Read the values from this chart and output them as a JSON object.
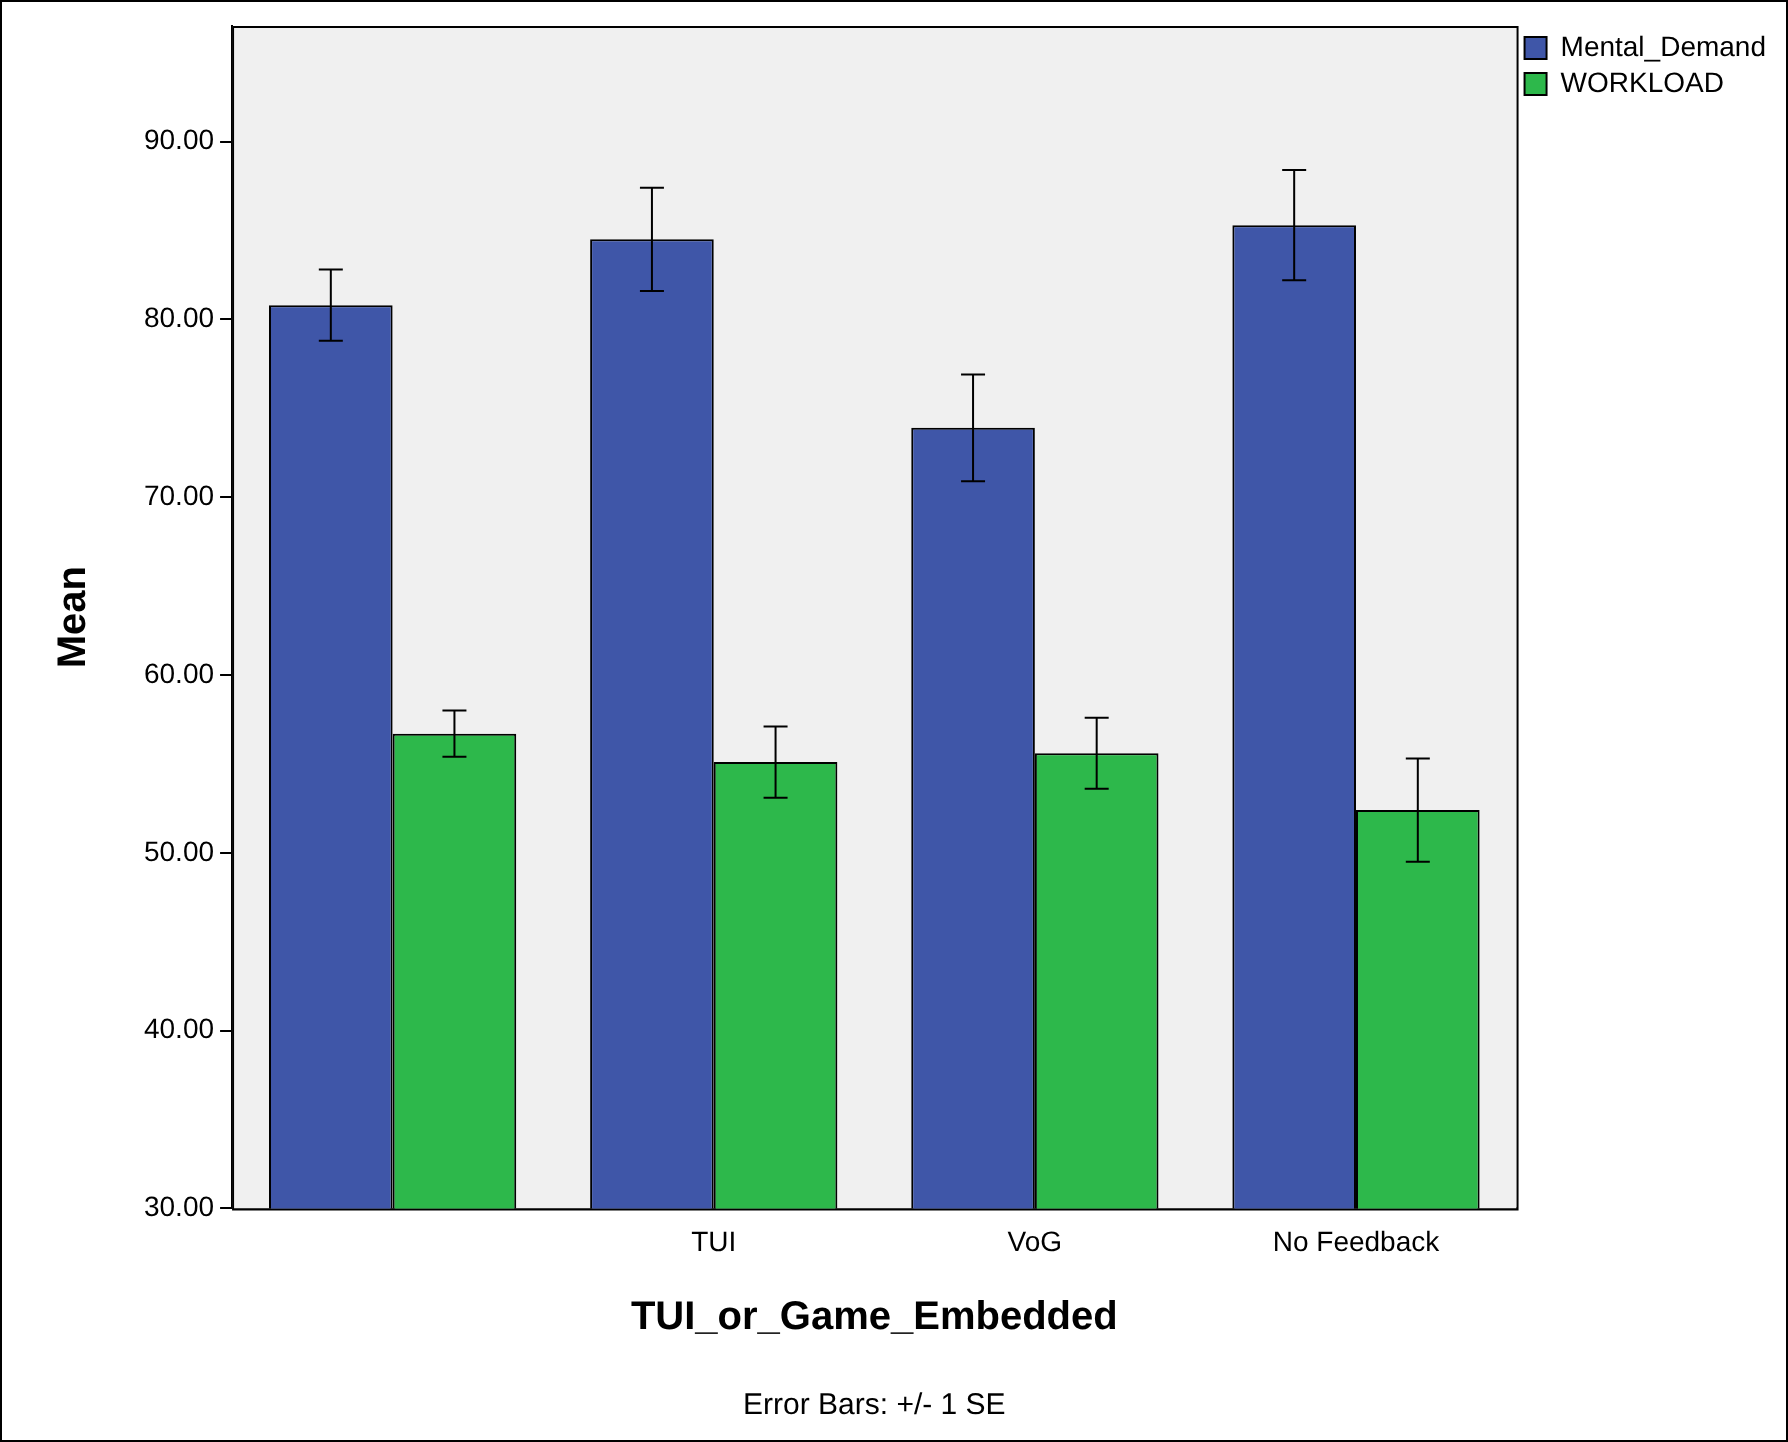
{
  "chart_data": {
    "type": "bar",
    "xlabel": "TUI_or_Game_Embedded",
    "ylabel": "Mean",
    "categories": [
      null,
      "TUI",
      "VoG",
      "No Feedback"
    ],
    "series": [
      {
        "name": "Mental_Demand",
        "color": "#3f56a8",
        "values": [
          80.8,
          84.5,
          73.9,
          85.3
        ],
        "errors": [
          2.0,
          2.9,
          3.0,
          3.1
        ]
      },
      {
        "name": "WORKLOAD",
        "color": "#2db84b",
        "values": [
          56.7,
          55.1,
          55.6,
          52.4
        ],
        "errors": [
          1.3,
          2.0,
          2.0,
          2.9
        ]
      }
    ],
    "ylim": [
      30,
      96.5
    ],
    "yticks": [
      {
        "value": 30,
        "label": "30.00"
      },
      {
        "value": 40,
        "label": "40.00"
      },
      {
        "value": 50,
        "label": "50.00"
      },
      {
        "value": 60,
        "label": "60.00"
      },
      {
        "value": 70,
        "label": "70.00"
      },
      {
        "value": 80,
        "label": "80.00"
      },
      {
        "value": 90,
        "label": "90.00"
      }
    ],
    "grid": false,
    "legend": "top right",
    "annotations": [
      "Error Bars: +/- 1 SE"
    ]
  }
}
